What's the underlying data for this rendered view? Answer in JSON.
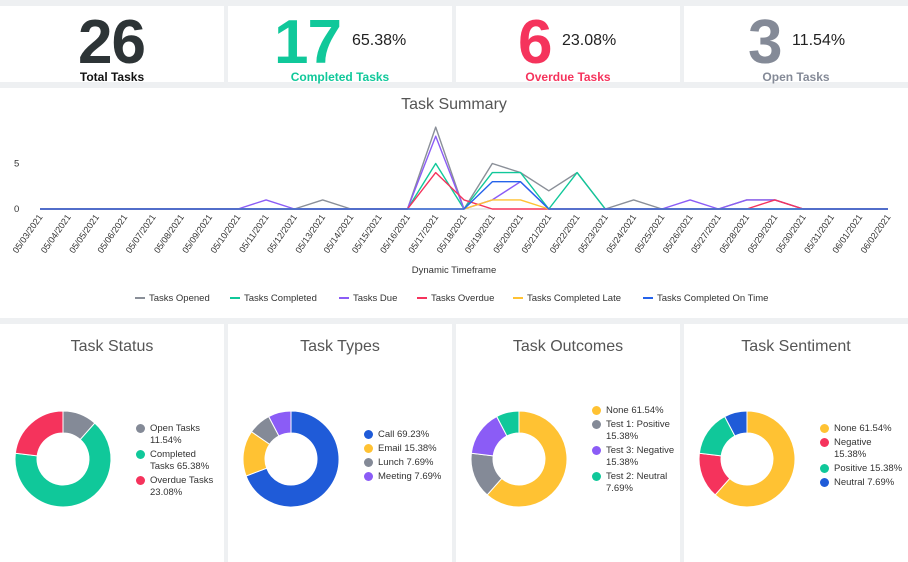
{
  "kpis": [
    {
      "value": "26",
      "label": "Total Tasks",
      "percent": "",
      "color": "#2d3436"
    },
    {
      "value": "17",
      "label": "Completed Tasks",
      "percent": "65.38%",
      "color": "#10c89a"
    },
    {
      "value": "6",
      "label": "Overdue Tasks",
      "percent": "23.08%",
      "color": "#f5335c"
    },
    {
      "value": "3",
      "label": "Open Tasks",
      "percent": "11.54%",
      "color": "#848a97"
    }
  ],
  "chart_data": [
    {
      "type": "line",
      "title": "Task Summary",
      "xlabel": "Dynamic Timeframe",
      "ylabel": "",
      "ylim": [
        0,
        10
      ],
      "yticks": [
        "0",
        "5"
      ],
      "x": [
        "05/03/2021",
        "05/04/2021",
        "05/05/2021",
        "05/06/2021",
        "05/07/2021",
        "05/08/2021",
        "05/09/2021",
        "05/10/2021",
        "05/11/2021",
        "05/12/2021",
        "05/13/2021",
        "05/14/2021",
        "05/15/2021",
        "05/16/2021",
        "05/17/2021",
        "05/18/2021",
        "05/19/2021",
        "05/20/2021",
        "05/21/2021",
        "05/22/2021",
        "05/23/2021",
        "05/24/2021",
        "05/25/2021",
        "05/26/2021",
        "05/27/2021",
        "05/28/2021",
        "05/29/2021",
        "05/30/2021",
        "05/31/2021",
        "06/01/2021",
        "06/02/2021"
      ],
      "series": [
        {
          "name": "Tasks Opened",
          "color": "#8a8f98",
          "values": [
            0,
            0,
            0,
            0,
            0,
            0,
            0,
            0,
            0,
            0,
            1,
            0,
            0,
            0,
            9,
            0,
            5,
            4,
            2,
            4,
            0,
            1,
            0,
            0,
            0,
            1,
            1,
            0,
            0,
            0,
            0
          ]
        },
        {
          "name": "Tasks Completed",
          "color": "#10c89a",
          "values": [
            0,
            0,
            0,
            0,
            0,
            0,
            0,
            0,
            0,
            0,
            0,
            0,
            0,
            0,
            5,
            0,
            4,
            4,
            0,
            4,
            0,
            0,
            0,
            0,
            0,
            0,
            0,
            0,
            0,
            0,
            0
          ]
        },
        {
          "name": "Tasks Due",
          "color": "#8b5cf6",
          "values": [
            0,
            0,
            0,
            0,
            0,
            0,
            0,
            0,
            1,
            0,
            0,
            0,
            0,
            0,
            8,
            0,
            1,
            3,
            0,
            0,
            0,
            0,
            0,
            1,
            0,
            1,
            1,
            0,
            0,
            0,
            0
          ]
        },
        {
          "name": "Tasks Overdue",
          "color": "#f5335c",
          "values": [
            0,
            0,
            0,
            0,
            0,
            0,
            0,
            0,
            0,
            0,
            0,
            0,
            0,
            0,
            4,
            1,
            0,
            0,
            0,
            0,
            0,
            0,
            0,
            0,
            0,
            0,
            1,
            0,
            0,
            0,
            0
          ]
        },
        {
          "name": "Tasks Completed Late",
          "color": "#ffc233",
          "values": [
            0,
            0,
            0,
            0,
            0,
            0,
            0,
            0,
            0,
            0,
            0,
            0,
            0,
            0,
            0,
            0,
            1,
            1,
            0,
            0,
            0,
            0,
            0,
            0,
            0,
            0,
            0,
            0,
            0,
            0,
            0
          ]
        },
        {
          "name": "Tasks Completed On Time",
          "color": "#2563eb",
          "values": [
            0,
            0,
            0,
            0,
            0,
            0,
            0,
            0,
            0,
            0,
            0,
            0,
            0,
            0,
            0,
            0,
            3,
            3,
            0,
            0,
            0,
            0,
            0,
            0,
            0,
            0,
            0,
            0,
            0,
            0,
            0
          ]
        }
      ]
    },
    {
      "type": "pie",
      "title": "Task Status",
      "slices": [
        {
          "name": "Open Tasks",
          "value": 11.54,
          "label": "Open Tasks 11.54%",
          "color": "#848a97"
        },
        {
          "name": "Completed Tasks",
          "value": 65.38,
          "label": "Completed Tasks 65.38%",
          "color": "#10c89a"
        },
        {
          "name": "Overdue Tasks",
          "value": 23.08,
          "label": "Overdue Tasks 23.08%",
          "color": "#f5335c"
        }
      ]
    },
    {
      "type": "pie",
      "title": "Task Types",
      "slices": [
        {
          "name": "Call",
          "value": 69.23,
          "label": "Call 69.23%",
          "color": "#1f5bd8"
        },
        {
          "name": "Email",
          "value": 15.38,
          "label": "Email 15.38%",
          "color": "#ffc233"
        },
        {
          "name": "Lunch",
          "value": 7.69,
          "label": "Lunch 7.69%",
          "color": "#848a97"
        },
        {
          "name": "Meeting",
          "value": 7.69,
          "label": "Meeting 7.69%",
          "color": "#8b5cf6"
        }
      ]
    },
    {
      "type": "pie",
      "title": "Task Outcomes",
      "slices": [
        {
          "name": "None",
          "value": 61.54,
          "label": "None 61.54%",
          "color": "#ffc233"
        },
        {
          "name": "Test 1: Positive",
          "value": 15.38,
          "label": "Test 1: Positive 15.38%",
          "color": "#848a97"
        },
        {
          "name": "Test 3: Negative",
          "value": 15.38,
          "label": "Test 3: Negative 15.38%",
          "color": "#8b5cf6"
        },
        {
          "name": "Test 2: Neutral",
          "value": 7.69,
          "label": "Test 2: Neutral 7.69%",
          "color": "#10c89a"
        }
      ]
    },
    {
      "type": "pie",
      "title": "Task Sentiment",
      "slices": [
        {
          "name": "None",
          "value": 61.54,
          "label": "None 61.54%",
          "color": "#ffc233"
        },
        {
          "name": "Negative",
          "value": 15.38,
          "label": "Negative 15.38%",
          "color": "#f5335c"
        },
        {
          "name": "Positive",
          "value": 15.38,
          "label": "Positive 15.38%",
          "color": "#10c89a"
        },
        {
          "name": "Neutral",
          "value": 7.69,
          "label": "Neutral 7.69%",
          "color": "#1f5bd8"
        }
      ]
    }
  ]
}
